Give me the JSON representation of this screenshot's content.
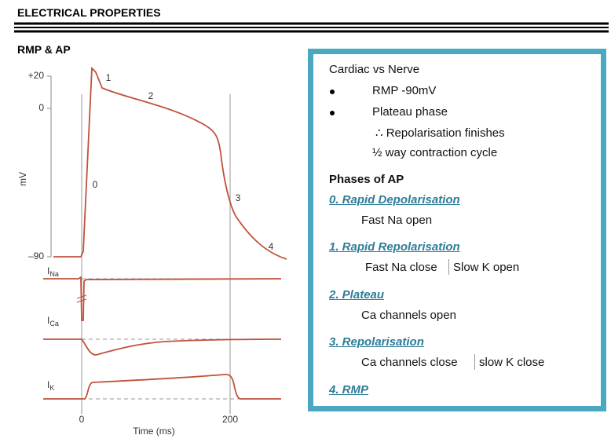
{
  "header": {
    "title": "ELECTRICAL PROPERTIES"
  },
  "section": {
    "title": "RMP & AP"
  },
  "figure": {
    "y_axis_label": "mV",
    "x_axis_label": "Time (ms)",
    "y_ticks": [
      "+20",
      "0",
      "–90"
    ],
    "x_ticks": [
      "0",
      "200"
    ],
    "phase_labels": [
      "1",
      "2",
      "0",
      "3",
      "4"
    ],
    "currents": [
      {
        "symbol": "I",
        "subscript": "Na"
      },
      {
        "symbol": "I",
        "subscript": "Ca"
      },
      {
        "symbol": "I",
        "subscript": "K"
      }
    ]
  },
  "notes": {
    "heading": "Cardiac vs Nerve",
    "bullets": [
      "RMP -90mV",
      "Plateau phase"
    ],
    "sub_lines": [
      "∴ Repolarisation finishes",
      "½ way contraction cycle"
    ],
    "phases_title": "Phases of AP",
    "phases": [
      {
        "name": "0. Rapid Depolarisation",
        "details": [
          "Fast Na open"
        ]
      },
      {
        "name": "1. Rapid Repolarisation",
        "details": [
          "Fast Na close",
          "Slow K open"
        ]
      },
      {
        "name": "2. Plateau",
        "details": [
          "Ca channels open"
        ]
      },
      {
        "name": "3. Repolarisation",
        "details": [
          "Ca channels close",
          "slow K close"
        ]
      },
      {
        "name": "4. RMP",
        "details": []
      }
    ]
  }
}
